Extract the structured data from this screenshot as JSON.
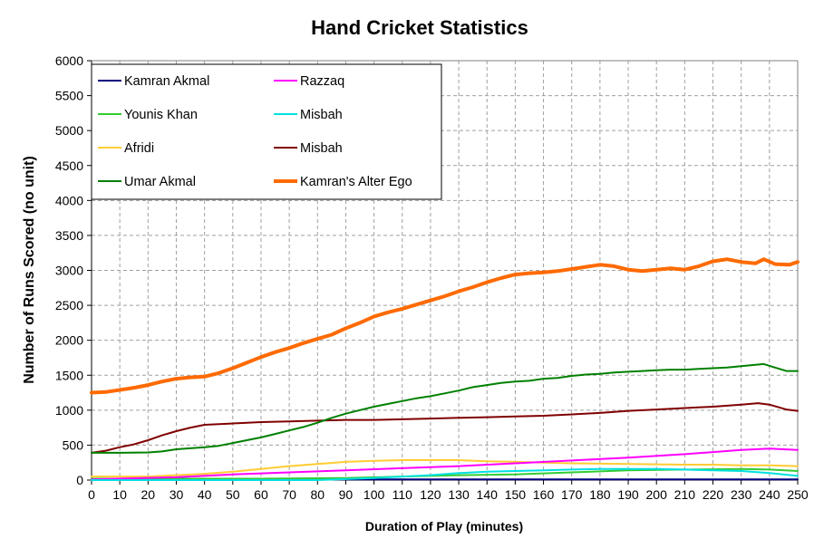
{
  "chart_data": {
    "type": "line",
    "title": "Hand Cricket Statistics",
    "xlabel": "Duration of Play (minutes)",
    "ylabel": "Number of Runs Scored (no unit)",
    "xlim": [
      0,
      250
    ],
    "ylim": [
      0,
      6000
    ],
    "x_ticks": [
      0,
      10,
      20,
      30,
      40,
      50,
      60,
      70,
      80,
      90,
      100,
      110,
      120,
      130,
      140,
      150,
      160,
      170,
      180,
      190,
      200,
      210,
      220,
      230,
      240,
      250
    ],
    "y_ticks": [
      0,
      500,
      1000,
      1500,
      2000,
      2500,
      3000,
      3500,
      4000,
      4500,
      5000,
      5500,
      6000
    ],
    "grid": true,
    "legend_position": "top-left",
    "series": [
      {
        "name": "Kamran Akmal",
        "color": "#000080",
        "width": 2,
        "points": [
          [
            0,
            10
          ],
          [
            50,
            10
          ],
          [
            100,
            10
          ],
          [
            150,
            10
          ],
          [
            200,
            10
          ],
          [
            250,
            10
          ]
        ]
      },
      {
        "name": "Younis Khan",
        "color": "#33cc33",
        "width": 2,
        "points": [
          [
            0,
            20
          ],
          [
            30,
            20
          ],
          [
            60,
            20
          ],
          [
            90,
            30
          ],
          [
            110,
            50
          ],
          [
            130,
            70
          ],
          [
            150,
            80
          ],
          [
            170,
            110
          ],
          [
            190,
            140
          ],
          [
            210,
            150
          ],
          [
            230,
            160
          ],
          [
            240,
            150
          ],
          [
            250,
            130
          ]
        ]
      },
      {
        "name": "Afridi",
        "color": "#ffcc33",
        "width": 2,
        "points": [
          [
            0,
            50
          ],
          [
            20,
            50
          ],
          [
            30,
            70
          ],
          [
            40,
            90
          ],
          [
            50,
            120
          ],
          [
            60,
            160
          ],
          [
            70,
            200
          ],
          [
            80,
            230
          ],
          [
            90,
            260
          ],
          [
            100,
            275
          ],
          [
            110,
            285
          ],
          [
            120,
            285
          ],
          [
            130,
            285
          ],
          [
            140,
            270
          ],
          [
            150,
            260
          ],
          [
            160,
            250
          ],
          [
            170,
            240
          ],
          [
            180,
            235
          ],
          [
            190,
            230
          ],
          [
            200,
            225
          ],
          [
            210,
            220
          ],
          [
            220,
            220
          ],
          [
            230,
            210
          ],
          [
            240,
            210
          ],
          [
            250,
            200
          ]
        ]
      },
      {
        "name": "Umar Akmal",
        "color": "#008000",
        "width": 2,
        "points": [
          [
            0,
            390
          ],
          [
            10,
            390
          ],
          [
            20,
            395
          ],
          [
            25,
            410
          ],
          [
            30,
            440
          ],
          [
            40,
            470
          ],
          [
            45,
            490
          ],
          [
            50,
            530
          ],
          [
            55,
            570
          ],
          [
            60,
            610
          ],
          [
            65,
            660
          ],
          [
            70,
            710
          ],
          [
            75,
            760
          ],
          [
            80,
            820
          ],
          [
            85,
            890
          ],
          [
            90,
            950
          ],
          [
            95,
            1000
          ],
          [
            100,
            1050
          ],
          [
            105,
            1090
          ],
          [
            110,
            1130
          ],
          [
            115,
            1170
          ],
          [
            120,
            1200
          ],
          [
            125,
            1240
          ],
          [
            130,
            1280
          ],
          [
            135,
            1330
          ],
          [
            140,
            1360
          ],
          [
            145,
            1390
          ],
          [
            150,
            1410
          ],
          [
            155,
            1420
          ],
          [
            160,
            1450
          ],
          [
            165,
            1460
          ],
          [
            170,
            1490
          ],
          [
            175,
            1510
          ],
          [
            180,
            1520
          ],
          [
            185,
            1540
          ],
          [
            190,
            1550
          ],
          [
            195,
            1560
          ],
          [
            200,
            1570
          ],
          [
            205,
            1580
          ],
          [
            210,
            1580
          ],
          [
            215,
            1590
          ],
          [
            220,
            1600
          ],
          [
            225,
            1610
          ],
          [
            230,
            1630
          ],
          [
            235,
            1650
          ],
          [
            238,
            1660
          ],
          [
            242,
            1610
          ],
          [
            246,
            1560
          ],
          [
            250,
            1560
          ]
        ]
      },
      {
        "name": "Razzaq",
        "color": "#ff00ff",
        "width": 2,
        "points": [
          [
            0,
            10
          ],
          [
            30,
            40
          ],
          [
            50,
            80
          ],
          [
            70,
            110
          ],
          [
            90,
            140
          ],
          [
            110,
            170
          ],
          [
            130,
            200
          ],
          [
            150,
            240
          ],
          [
            170,
            280
          ],
          [
            190,
            320
          ],
          [
            210,
            370
          ],
          [
            220,
            400
          ],
          [
            230,
            430
          ],
          [
            240,
            450
          ],
          [
            245,
            440
          ],
          [
            250,
            430
          ]
        ]
      },
      {
        "name": "Misbah",
        "color": "#00e0e0",
        "width": 2,
        "points": [
          [
            0,
            0
          ],
          [
            80,
            0
          ],
          [
            100,
            30
          ],
          [
            120,
            70
          ],
          [
            130,
            100
          ],
          [
            140,
            120
          ],
          [
            150,
            130
          ],
          [
            160,
            140
          ],
          [
            170,
            150
          ],
          [
            180,
            160
          ],
          [
            190,
            160
          ],
          [
            200,
            160
          ],
          [
            210,
            150
          ],
          [
            220,
            140
          ],
          [
            230,
            130
          ],
          [
            240,
            100
          ],
          [
            250,
            60
          ]
        ]
      },
      {
        "name": "Misbah",
        "color": "#800000",
        "width": 2,
        "points": [
          [
            0,
            390
          ],
          [
            5,
            420
          ],
          [
            10,
            470
          ],
          [
            15,
            510
          ],
          [
            20,
            570
          ],
          [
            25,
            640
          ],
          [
            30,
            700
          ],
          [
            35,
            750
          ],
          [
            40,
            790
          ],
          [
            50,
            810
          ],
          [
            60,
            830
          ],
          [
            70,
            840
          ],
          [
            80,
            850
          ],
          [
            90,
            860
          ],
          [
            100,
            860
          ],
          [
            110,
            870
          ],
          [
            120,
            880
          ],
          [
            130,
            890
          ],
          [
            140,
            900
          ],
          [
            150,
            910
          ],
          [
            160,
            920
          ],
          [
            170,
            940
          ],
          [
            180,
            960
          ],
          [
            190,
            990
          ],
          [
            200,
            1010
          ],
          [
            210,
            1030
          ],
          [
            220,
            1050
          ],
          [
            230,
            1080
          ],
          [
            236,
            1100
          ],
          [
            240,
            1080
          ],
          [
            246,
            1010
          ],
          [
            250,
            990
          ]
        ]
      },
      {
        "name": "Kamran's Alter Ego",
        "color": "#ff6a00",
        "width": 4,
        "points": [
          [
            0,
            1250
          ],
          [
            5,
            1260
          ],
          [
            10,
            1290
          ],
          [
            15,
            1320
          ],
          [
            20,
            1360
          ],
          [
            25,
            1410
          ],
          [
            30,
            1450
          ],
          [
            35,
            1470
          ],
          [
            40,
            1480
          ],
          [
            45,
            1530
          ],
          [
            50,
            1600
          ],
          [
            55,
            1680
          ],
          [
            60,
            1760
          ],
          [
            65,
            1830
          ],
          [
            70,
            1890
          ],
          [
            75,
            1960
          ],
          [
            80,
            2020
          ],
          [
            85,
            2080
          ],
          [
            90,
            2170
          ],
          [
            95,
            2250
          ],
          [
            100,
            2340
          ],
          [
            105,
            2400
          ],
          [
            110,
            2450
          ],
          [
            115,
            2510
          ],
          [
            120,
            2570
          ],
          [
            125,
            2630
          ],
          [
            130,
            2700
          ],
          [
            135,
            2760
          ],
          [
            140,
            2830
          ],
          [
            145,
            2890
          ],
          [
            150,
            2940
          ],
          [
            155,
            2960
          ],
          [
            160,
            2970
          ],
          [
            165,
            2990
          ],
          [
            170,
            3020
          ],
          [
            175,
            3050
          ],
          [
            180,
            3080
          ],
          [
            185,
            3060
          ],
          [
            190,
            3010
          ],
          [
            195,
            2990
          ],
          [
            200,
            3010
          ],
          [
            205,
            3030
          ],
          [
            210,
            3010
          ],
          [
            215,
            3060
          ],
          [
            220,
            3130
          ],
          [
            225,
            3160
          ],
          [
            230,
            3120
          ],
          [
            235,
            3100
          ],
          [
            238,
            3160
          ],
          [
            242,
            3090
          ],
          [
            247,
            3080
          ],
          [
            250,
            3120
          ]
        ]
      }
    ]
  }
}
